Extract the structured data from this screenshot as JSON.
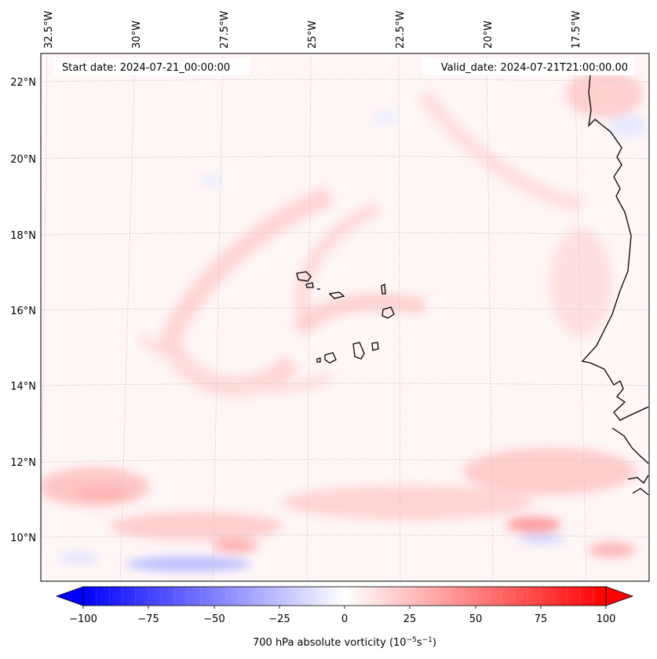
{
  "header": {
    "start_date": "Start date: 2024-07-21_00:00:00",
    "valid_date": "Valid_date: 2024-07-21T21:00:00.00"
  },
  "map": {
    "lon_labels": [
      "32.5°W",
      "30°W",
      "27.5°W",
      "25°W",
      "22.5°W",
      "20°W",
      "17.5°W"
    ],
    "lat_labels": [
      "22°N",
      "20°N",
      "18°N",
      "16°N",
      "14°N",
      "12°N",
      "10°N"
    ],
    "gridlines": true,
    "coastline_color": "#000000",
    "field_colors": {
      "strong_negative": "#0000ff",
      "zero": "#ffffff",
      "strong_positive": "#ff0000"
    }
  },
  "colorbar": {
    "ticks": [
      "−100",
      "−75",
      "−50",
      "−25",
      "0",
      "25",
      "50",
      "75",
      "100"
    ],
    "label": "700 hPa absolute vorticity (10",
    "label_exp1": "−5",
    "label_mid": "s",
    "label_exp2": "−1",
    "label_close": ")",
    "extend": "both"
  }
}
